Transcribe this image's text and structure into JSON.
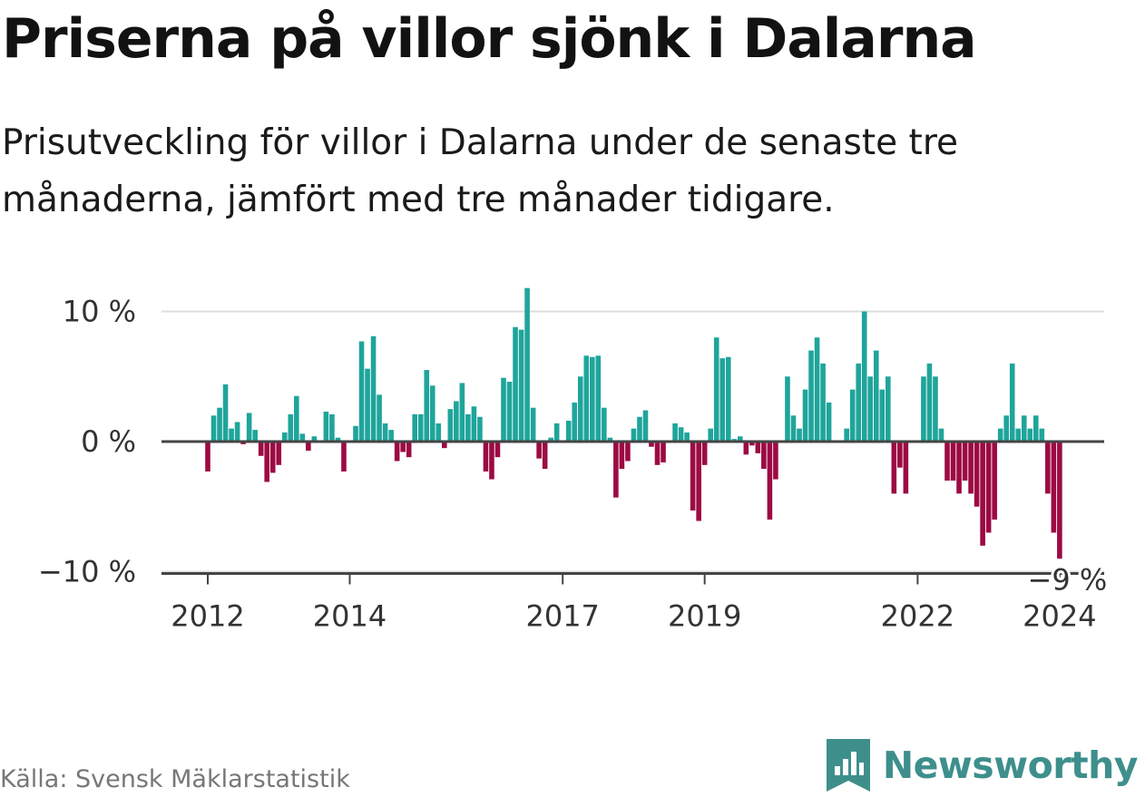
{
  "title": "Priserna på villor sjönk i Dalarna",
  "subtitle": "Prisutveckling för villor i Dalarna under de senaste tre månaderna, jämfört med tre månader tidigare.",
  "source": "Källa: Svensk Mäklarstatistik",
  "brand": "Newsworthy",
  "colors": {
    "positive": "#1fa59b",
    "negative": "#9c0a43",
    "brand": "#3e8f8c",
    "grid": "#dddddd",
    "zero": "#444444"
  },
  "chart_data": {
    "type": "bar",
    "title": "Priserna på villor sjönk i Dalarna",
    "xlabel": "",
    "ylabel": "",
    "ylim": [
      -10,
      12
    ],
    "y_ticks": [
      {
        "value": 10,
        "label": "10 %"
      },
      {
        "value": 0,
        "label": "0 %"
      },
      {
        "value": -10,
        "label": "−10 %"
      }
    ],
    "x_ticks": [
      {
        "month_index": 0,
        "label": "2012"
      },
      {
        "month_index": 24,
        "label": "2014"
      },
      {
        "month_index": 60,
        "label": "2017"
      },
      {
        "month_index": 84,
        "label": "2019"
      },
      {
        "month_index": 120,
        "label": "2022"
      },
      {
        "month_index": 144,
        "label": "2024"
      }
    ],
    "annotation": {
      "month_index": 145,
      "label": "−9 %"
    },
    "start": "2012-01",
    "unit": "percent change, month by month",
    "values": [
      -2.3,
      2.0,
      2.6,
      4.4,
      1.0,
      1.5,
      -0.2,
      2.2,
      0.9,
      -1.1,
      -3.1,
      -2.4,
      -1.8,
      0.7,
      2.1,
      3.5,
      0.6,
      -0.7,
      0.4,
      0.0,
      2.3,
      2.1,
      0.3,
      -2.3,
      0.0,
      1.2,
      7.7,
      5.6,
      8.1,
      3.6,
      1.4,
      0.9,
      -1.5,
      -0.8,
      -1.2,
      2.1,
      2.1,
      5.5,
      4.3,
      1.4,
      -0.5,
      2.5,
      3.1,
      4.5,
      2.1,
      2.7,
      1.9,
      -2.3,
      -2.9,
      -1.2,
      4.9,
      4.6,
      8.8,
      8.6,
      11.8,
      2.6,
      -1.3,
      -2.1,
      0.3,
      1.4,
      0.0,
      1.6,
      3.0,
      5.0,
      6.6,
      6.5,
      6.6,
      2.6,
      0.3,
      -4.3,
      -2.1,
      -1.5,
      1.0,
      1.9,
      2.4,
      -0.4,
      -1.8,
      -1.6,
      0.0,
      1.4,
      1.1,
      0.7,
      -5.3,
      -6.1,
      -1.8,
      1.0,
      8.0,
      6.4,
      6.5,
      0.2,
      0.4,
      -1.0,
      -0.3,
      -0.9,
      -2.1,
      -6.0,
      -2.9,
      0.0,
      5.0,
      2.0,
      1.0,
      4.0,
      7.0,
      8.0,
      6.0,
      3.0,
      0.0,
      0.0,
      1.0,
      4.0,
      6.0,
      10.0,
      5.0,
      7.0,
      4.0,
      5.0,
      -4.0,
      -2.0,
      -4.0,
      0.0,
      0.0,
      5.0,
      6.0,
      5.0,
      1.0,
      -3.0,
      -3.0,
      -4.0,
      -3.0,
      -4.0,
      -5.0,
      -8.0,
      -7.0,
      -6.0,
      1.0,
      2.0,
      6.0,
      1.0,
      2.0,
      1.0,
      2.0,
      1.0,
      -4.0,
      -7.0,
      -9.0
    ]
  }
}
